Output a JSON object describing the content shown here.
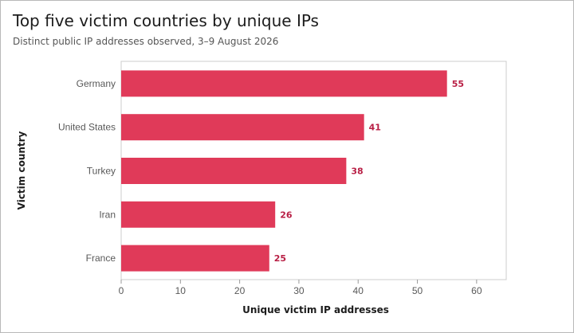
{
  "title": "Top five victim countries by unique IPs",
  "subtitle": "Distinct public IP addresses observed, 3–9 August 2026",
  "chart_data": {
    "type": "bar",
    "orientation": "horizontal",
    "title": "Top five victim countries by unique IPs",
    "subtitle": "Distinct public IP addresses observed, 3–9 August 2026",
    "xlabel": "Unique victim IP addresses",
    "ylabel": "Victim country",
    "categories": [
      "Germany",
      "United States",
      "Turkey",
      "Iran",
      "France"
    ],
    "values": [
      55,
      41,
      38,
      26,
      25
    ],
    "xlim": [
      0,
      65
    ],
    "xticks": [
      0,
      10,
      20,
      30,
      40,
      50,
      60
    ],
    "bar_color": "#e03a59",
    "label_color": "#b81f45",
    "grid": false,
    "legend": "none"
  }
}
